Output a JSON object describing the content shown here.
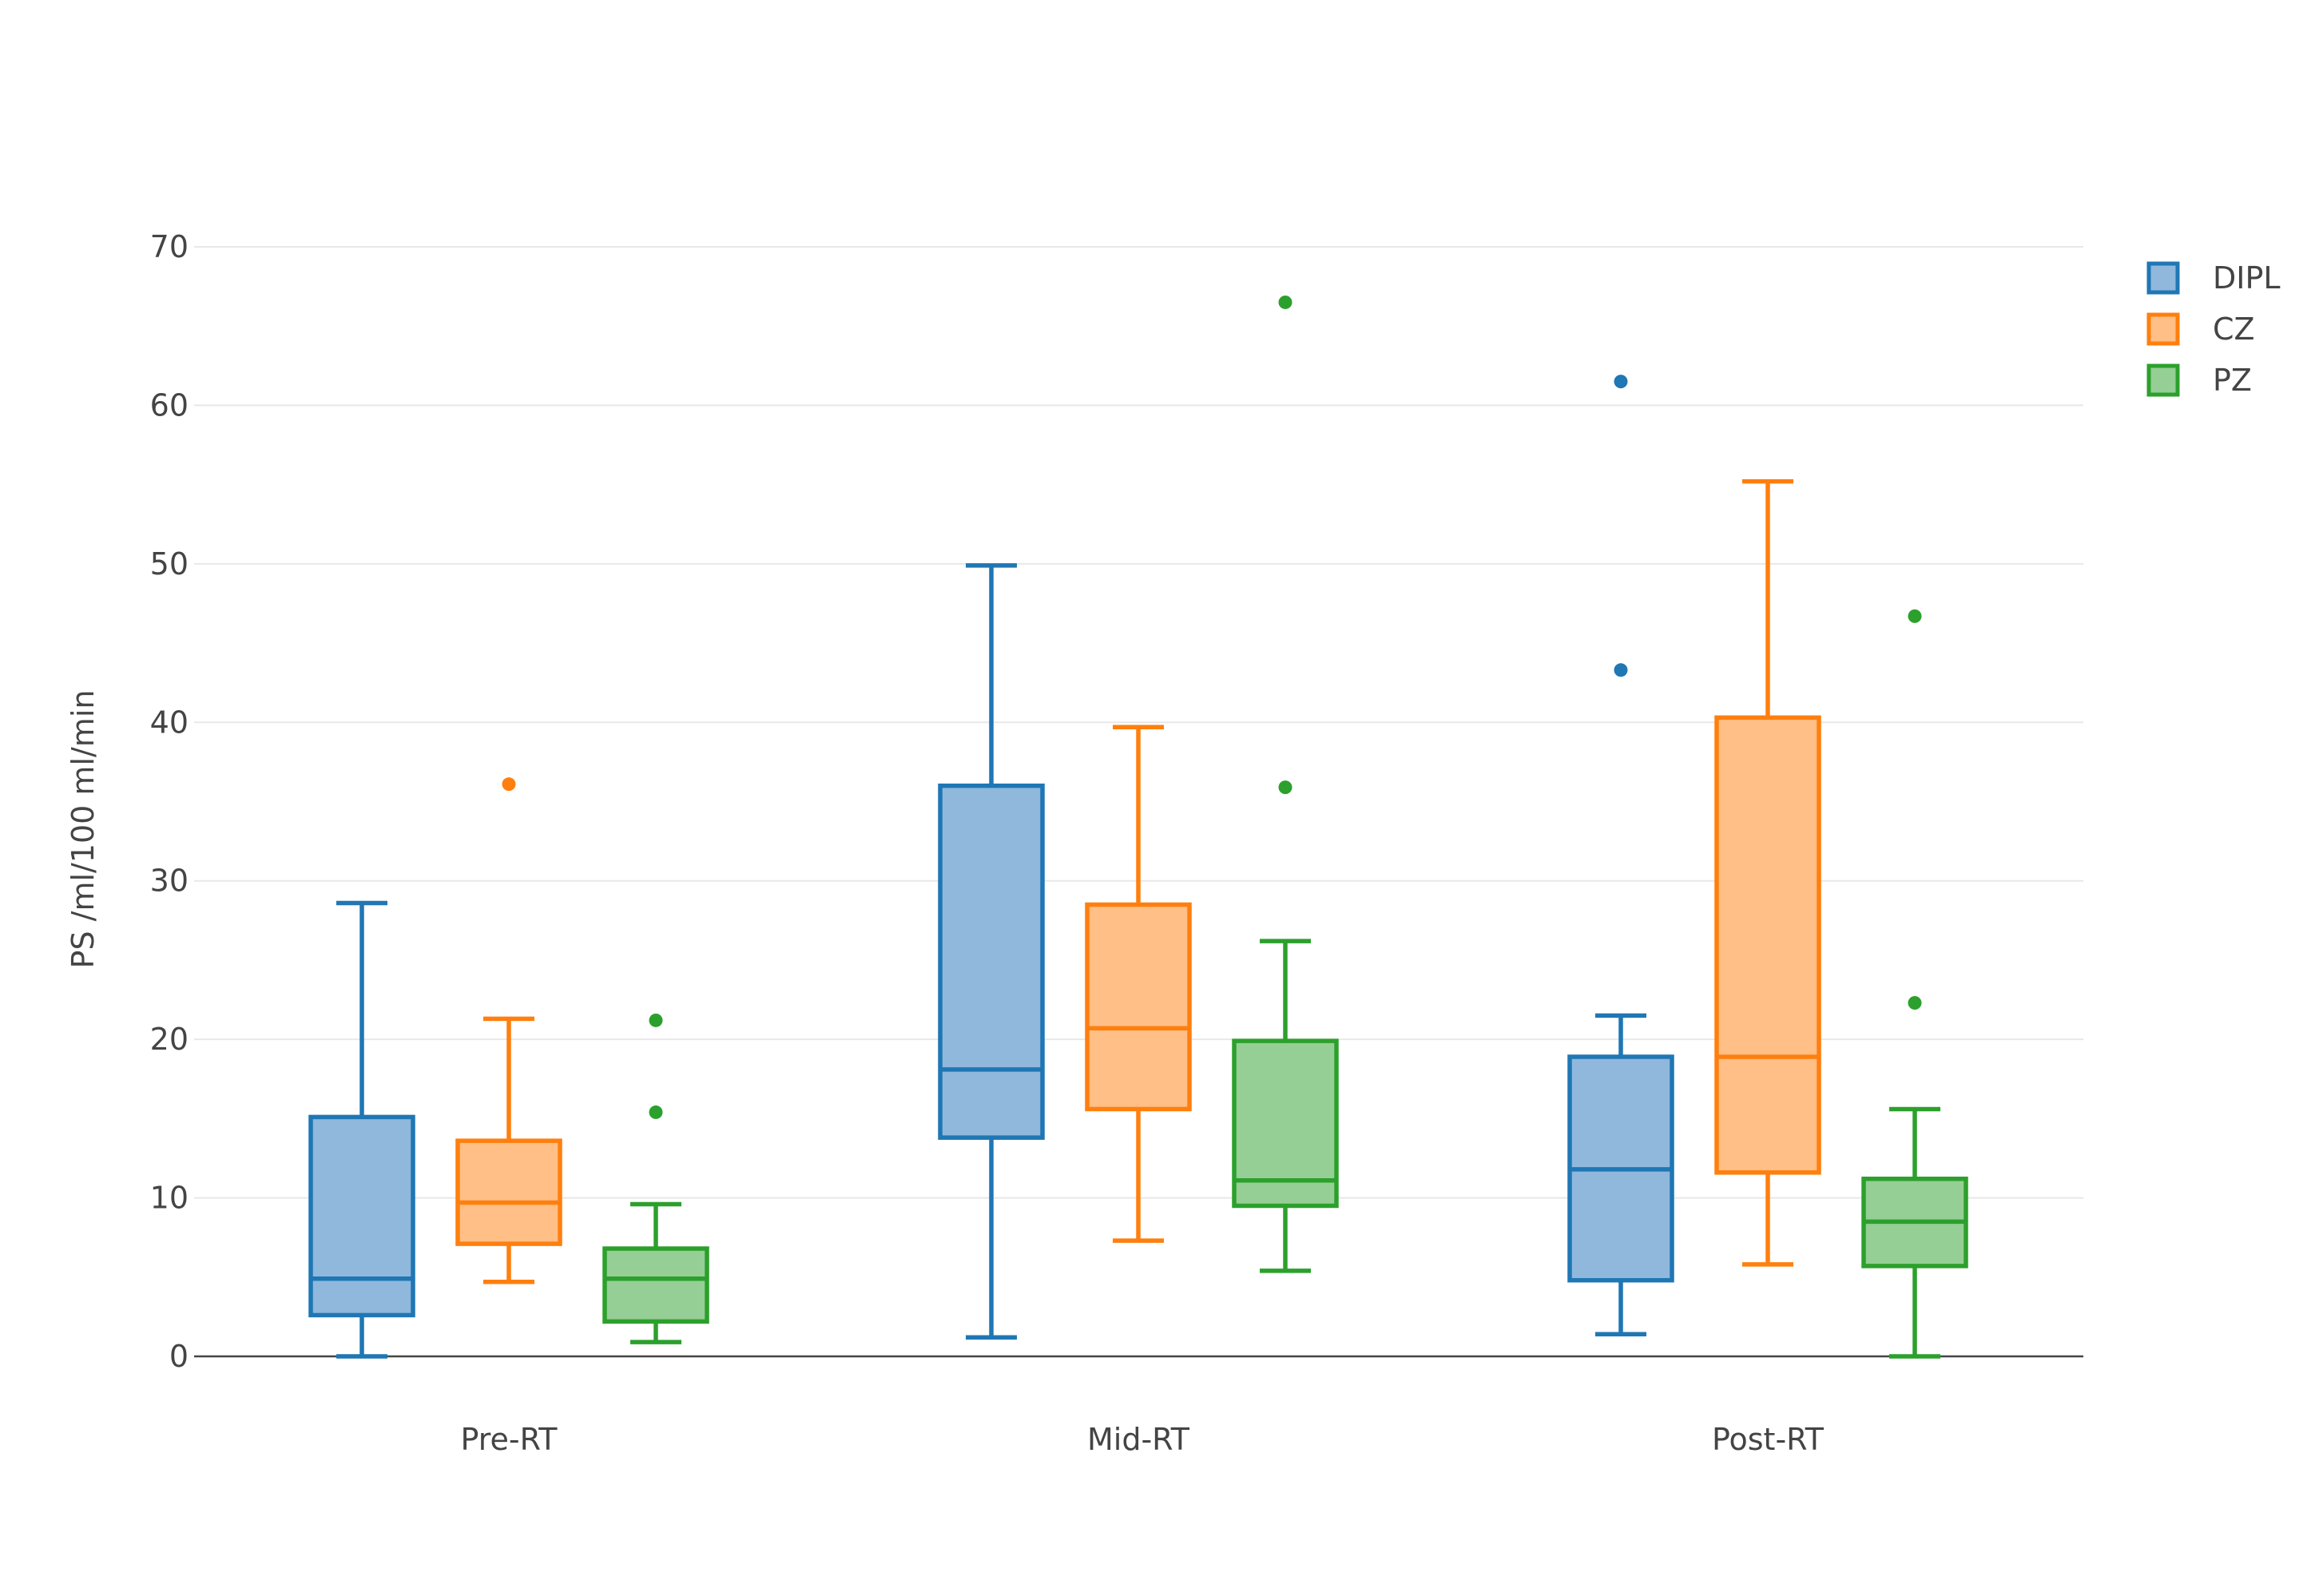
{
  "chart_data": {
    "type": "box",
    "title": "",
    "xlabel": "",
    "ylabel": "PS /ml/100 ml/min",
    "ylim": [
      0,
      70
    ],
    "yticks": [
      0,
      10,
      20,
      30,
      40,
      50,
      60,
      70
    ],
    "grid": true,
    "legend_position": "top-right",
    "categories": [
      "Pre-RT",
      "Mid-RT",
      "Post-RT"
    ],
    "series": [
      {
        "name": "DIPL",
        "color": "#1f77b4",
        "fill": "#8fb8dc",
        "boxes": [
          {
            "low": 0,
            "q1": 2.6,
            "median": 4.9,
            "q3": 15.1,
            "high": 28.6,
            "outliers": []
          },
          {
            "low": 1.2,
            "q1": 13.8,
            "median": 18.1,
            "q3": 36.0,
            "high": 49.9,
            "outliers": []
          },
          {
            "low": 1.4,
            "q1": 4.8,
            "median": 11.8,
            "q3": 18.9,
            "high": 21.5,
            "outliers": [
              43.3,
              61.5
            ]
          }
        ]
      },
      {
        "name": "CZ",
        "color": "#ff7f0e",
        "fill": "#ffbf86",
        "boxes": [
          {
            "low": 4.7,
            "q1": 7.1,
            "median": 9.7,
            "q3": 13.6,
            "high": 21.3,
            "outliers": [
              36.1
            ]
          },
          {
            "low": 7.3,
            "q1": 15.6,
            "median": 20.7,
            "q3": 28.5,
            "high": 39.7,
            "outliers": []
          },
          {
            "low": 5.8,
            "q1": 11.6,
            "median": 18.9,
            "q3": 40.3,
            "high": 55.2,
            "outliers": []
          }
        ]
      },
      {
        "name": "PZ",
        "color": "#2ca02c",
        "fill": "#95cf95",
        "boxes": [
          {
            "low": 0.9,
            "q1": 2.2,
            "median": 4.9,
            "q3": 6.8,
            "high": 9.6,
            "outliers": [
              15.4,
              21.2
            ]
          },
          {
            "low": 5.4,
            "q1": 9.5,
            "median": 11.1,
            "q3": 19.9,
            "high": 26.2,
            "outliers": [
              35.9,
              66.5
            ]
          },
          {
            "low": 0,
            "q1": 5.7,
            "median": 8.5,
            "q3": 11.2,
            "high": 15.6,
            "outliers": [
              22.3,
              46.7
            ]
          }
        ]
      }
    ]
  }
}
